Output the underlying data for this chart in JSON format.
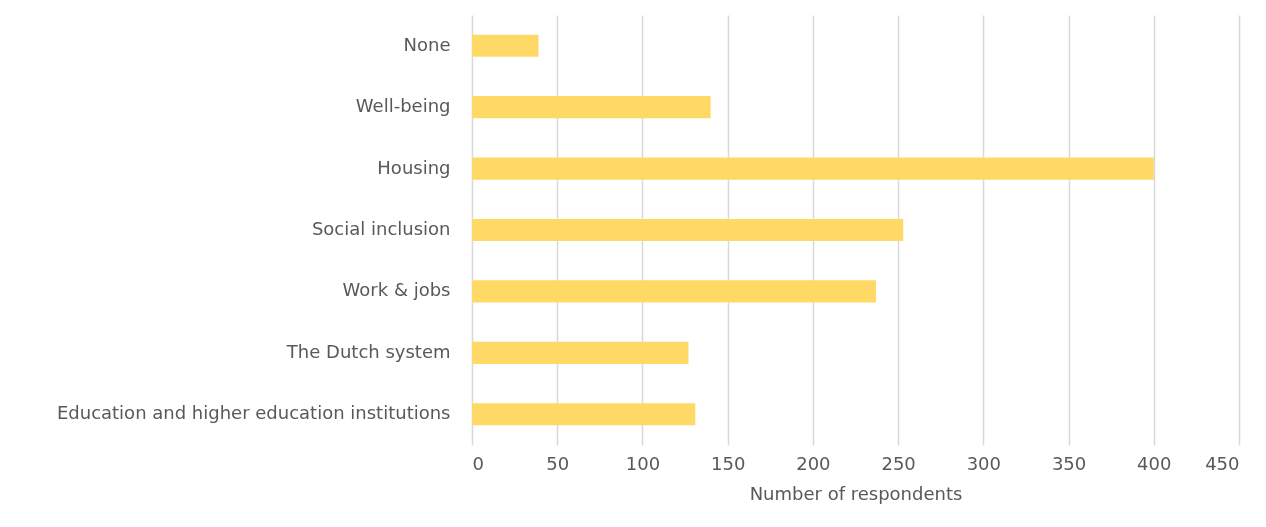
{
  "chart_data": {
    "type": "bar",
    "orientation": "horizontal",
    "xlabel": "Number of respondents",
    "categories": [
      "None",
      "Well-being",
      "Housing",
      "Social inclusion",
      "Work & jobs",
      "The Dutch system",
      "Education and higher education institutions"
    ],
    "values": [
      39,
      140,
      400,
      253,
      237,
      127,
      131
    ],
    "color": "#ffd966",
    "xlim": [
      0,
      450
    ],
    "xticks": [
      0,
      50,
      100,
      150,
      200,
      250,
      300,
      350,
      400,
      450
    ],
    "grid": "x"
  }
}
